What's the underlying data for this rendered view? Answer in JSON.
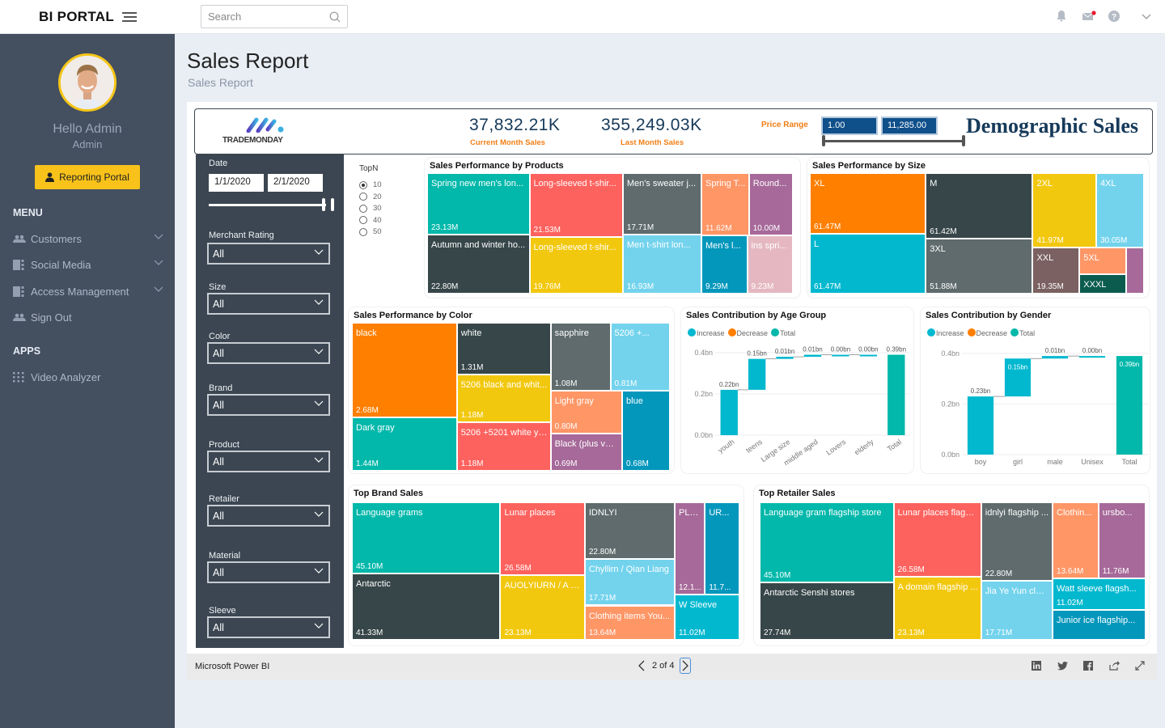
{
  "topbar": {
    "brand": "BI PORTAL",
    "search_placeholder": "Search"
  },
  "sidebar": {
    "greeting": "Hello Admin",
    "role": "Admin",
    "portal_button": "Reporting Portal",
    "menu_heading": "MENU",
    "menu_items": [
      {
        "label": "Customers",
        "icon": "users-icon",
        "expandable": true
      },
      {
        "label": "Social Media",
        "icon": "panel-icon",
        "expandable": true
      },
      {
        "label": "Access Management",
        "icon": "panel-icon",
        "expandable": true
      },
      {
        "label": "Sign Out",
        "icon": "users-icon",
        "expandable": false
      }
    ],
    "apps_heading": "APPS",
    "apps_items": [
      {
        "label": "Video Analyzer",
        "icon": "grid-icon"
      }
    ]
  },
  "page": {
    "title": "Sales Report",
    "subtitle": "Sales Report"
  },
  "banner": {
    "logo_text": "TRADEMONDAY",
    "current_month_value": "37,832.21K",
    "current_month_label": "Current Month Sales",
    "last_month_value": "355,249.03K",
    "last_month_label": "Last Month Sales",
    "price_range_label": "Price Range",
    "price_min": "1.00",
    "price_max": "11,285.00",
    "heading": "Demographic Sales"
  },
  "slicers": {
    "date_label": "Date",
    "date_from": "1/1/2020",
    "date_to": "2/1/2020",
    "dropdowns": [
      {
        "label": "Merchant Rating",
        "value": "All"
      },
      {
        "label": "Size",
        "value": "All"
      },
      {
        "label": "Color",
        "value": "All"
      },
      {
        "label": "Brand",
        "value": "All"
      },
      {
        "label": "Product",
        "value": "All"
      },
      {
        "label": "Retailer",
        "value": "All"
      },
      {
        "label": "Material",
        "value": "All"
      },
      {
        "label": "Sleeve",
        "value": "All"
      }
    ]
  },
  "topn": {
    "label": "TopN",
    "options": [
      "10",
      "20",
      "30",
      "40",
      "50"
    ],
    "selected": "10"
  },
  "colors": {
    "teal": "#01b8aa",
    "dark": "#374649",
    "red": "#fd625e",
    "gray": "#5f6b6d",
    "yellow": "#f2c80f",
    "orange": "#fe9666",
    "purple": "#a66999",
    "lightblue": "#73d3ed",
    "cyan": "#01b8cf",
    "blue": "#0497bc",
    "pink": "#e5b8c1",
    "brightorange": "#ff7f00",
    "brown": "#7b6161",
    "darkgreen": "#0b5c4f"
  },
  "chart_data": [
    {
      "type": "treemap",
      "title": "Sales Performance by Products",
      "items": [
        {
          "name": "Spring new men's lon...",
          "value": "23.13M",
          "color": "teal"
        },
        {
          "name": "Autumn and winter ho...",
          "value": "22.80M",
          "color": "dark"
        },
        {
          "name": "Long-sleeved t-shir...",
          "value": "21.53M",
          "color": "red"
        },
        {
          "name": "Long-sleeved t-shir...",
          "value": "19.76M",
          "color": "yellow"
        },
        {
          "name": "Men's sweater j...",
          "value": "17.71M",
          "color": "gray"
        },
        {
          "name": "Men t-shirt lon...",
          "value": "16.93M",
          "color": "lightblue"
        },
        {
          "name": "Spring T...",
          "value": "11.62M",
          "color": "orange"
        },
        {
          "name": "Round...",
          "value": "10.00M",
          "color": "purple"
        },
        {
          "name": "Men's l...",
          "value": "9.29M",
          "color": "blue"
        },
        {
          "name": "ins spri...",
          "value": "9.23M",
          "color": "pink"
        }
      ]
    },
    {
      "type": "treemap",
      "title": "Sales Performance by Size",
      "items": [
        {
          "name": "XL",
          "value": "61.47M",
          "color": "brightorange"
        },
        {
          "name": "L",
          "value": "61.47M",
          "color": "cyan"
        },
        {
          "name": "M",
          "value": "61.42M",
          "color": "dark"
        },
        {
          "name": "3XL",
          "value": "51.88M",
          "color": "gray"
        },
        {
          "name": "2XL",
          "value": "41.97M",
          "color": "yellow"
        },
        {
          "name": "4XL",
          "value": "30.05M",
          "color": "lightblue"
        },
        {
          "name": "XXL",
          "value": "19.35M",
          "color": "brown"
        },
        {
          "name": "5XL",
          "value": "",
          "color": "orange"
        },
        {
          "name": "XXXL",
          "value": "",
          "color": "darkgreen"
        },
        {
          "name": "",
          "value": "",
          "color": "purple"
        }
      ]
    },
    {
      "type": "treemap",
      "title": "Sales Performance by Color",
      "items": [
        {
          "name": "black",
          "value": "2.68M",
          "color": "brightorange"
        },
        {
          "name": "Dark gray",
          "value": "1.44M",
          "color": "teal"
        },
        {
          "name": "white",
          "value": "1.31M",
          "color": "dark"
        },
        {
          "name": "5206 black and whit...",
          "value": "1.18M",
          "color": "yellow"
        },
        {
          "name": "5206 +5201 white ye...",
          "value": "1.18M",
          "color": "red"
        },
        {
          "name": "sapphire",
          "value": "1.08M",
          "color": "gray"
        },
        {
          "name": "5206 +...",
          "value": "0.81M",
          "color": "lightblue"
        },
        {
          "name": "Light gray",
          "value": "0.80M",
          "color": "orange"
        },
        {
          "name": "Black (plus velv...",
          "value": "0.69M",
          "color": "purple"
        },
        {
          "name": "blue",
          "value": "0.68M",
          "color": "blue"
        }
      ]
    },
    {
      "type": "waterfall",
      "title": "Sales Contribution by Age Group",
      "legend": [
        {
          "label": "Increase",
          "color": "#01b8cf"
        },
        {
          "label": "Decrease",
          "color": "#ff7f00"
        },
        {
          "label": "Total",
          "color": "#01b8aa"
        }
      ],
      "yticks": [
        "0.4bn",
        "0.2bn",
        "0.0bn"
      ],
      "ylim": [
        0,
        0.4
      ],
      "categories": [
        "youth",
        "teens",
        "Large size",
        "middle aged",
        "Lovers",
        "elderly",
        "Total"
      ],
      "values": [
        0.22,
        0.15,
        0.01,
        0.01,
        0.0,
        0.0,
        0.39
      ],
      "labels": [
        "0.22bn",
        "0.15bn",
        "0.01bn",
        "0.01bn",
        "0.00bn",
        "0.00bn",
        "0.39bn"
      ]
    },
    {
      "type": "waterfall",
      "title": "Sales Contribution by Gender",
      "legend": [
        {
          "label": "Increase",
          "color": "#01b8cf"
        },
        {
          "label": "Decrease",
          "color": "#ff7f00"
        },
        {
          "label": "Total",
          "color": "#01b8aa"
        }
      ],
      "yticks": [
        "0.4bn",
        "0.2bn",
        "0.0bn"
      ],
      "ylim": [
        0,
        0.4
      ],
      "categories": [
        "boy",
        "girl",
        "male",
        "Unisex",
        "Total"
      ],
      "values": [
        0.23,
        0.15,
        0.01,
        0.0,
        0.39
      ],
      "labels": [
        "0.23bn",
        "0.15bn",
        "0.01bn",
        "0.00bn",
        "0.39bn"
      ]
    },
    {
      "type": "treemap",
      "title": "Top Brand Sales",
      "items": [
        {
          "name": "Language grams",
          "value": "45.10M",
          "color": "teal"
        },
        {
          "name": "Antarctic",
          "value": "41.33M",
          "color": "dark"
        },
        {
          "name": "Lunar places",
          "value": "26.58M",
          "color": "red"
        },
        {
          "name": "AUOLYIURN / A D...",
          "value": "23.13M",
          "color": "yellow"
        },
        {
          "name": "IDNLYI",
          "value": "22.80M",
          "color": "gray"
        },
        {
          "name": "Chyllirn / Qian Liang",
          "value": "17.71M",
          "color": "lightblue"
        },
        {
          "name": "Clothing items You...",
          "value": "13.64M",
          "color": "orange"
        },
        {
          "name": "PLA...",
          "value": "12.1...",
          "color": "purple"
        },
        {
          "name": "UR...",
          "value": "11.7...",
          "color": "blue"
        },
        {
          "name": "W Sleeve",
          "value": "11.02M",
          "color": "cyan"
        }
      ]
    },
    {
      "type": "treemap",
      "title": "Top Retailer Sales",
      "items": [
        {
          "name": "Language gram flagship store",
          "value": "45.10M",
          "color": "teal"
        },
        {
          "name": "Antarctic Senshi stores",
          "value": "27.74M",
          "color": "dark"
        },
        {
          "name": "Lunar places flagsh...",
          "value": "26.58M",
          "color": "red"
        },
        {
          "name": "A domain flagship ...",
          "value": "23.13M",
          "color": "yellow"
        },
        {
          "name": "idnlyi flagship ...",
          "value": "22.80M",
          "color": "gray"
        },
        {
          "name": "Jia Ye Yun clot...",
          "value": "17.71M",
          "color": "lightblue"
        },
        {
          "name": "Clothin...",
          "value": "13.64M",
          "color": "orange"
        },
        {
          "name": "ursbo...",
          "value": "11.76M",
          "color": "purple"
        },
        {
          "name": "Watt sleeve flagsh...",
          "value": "11.02M",
          "color": "cyan"
        },
        {
          "name": "Junior ice flagship...",
          "value": "",
          "color": "blue"
        }
      ]
    }
  ],
  "footer": {
    "product": "Microsoft Power BI",
    "page_indicator": "2 of 4"
  }
}
